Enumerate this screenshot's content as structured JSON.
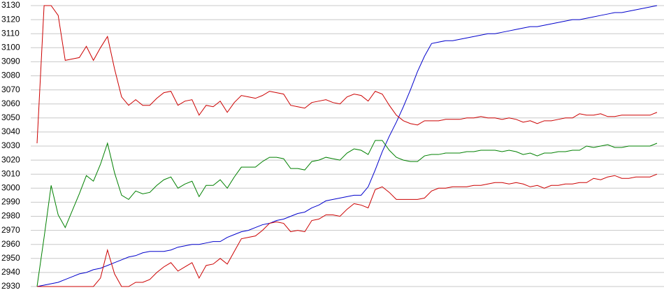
{
  "chart_data": {
    "type": "line",
    "ylim": [
      2930,
      3130
    ],
    "yticks": [
      2930,
      2940,
      2950,
      2960,
      2970,
      2980,
      2990,
      3000,
      3010,
      3020,
      3030,
      3040,
      3050,
      3060,
      3070,
      3080,
      3090,
      3100,
      3110,
      3120,
      3130
    ],
    "grid": true,
    "series": [
      {
        "color": "#0000cc",
        "values": [
          2930,
          2931,
          2932,
          2933,
          2935,
          2937,
          2939,
          2940,
          2942,
          2943,
          2945,
          2947,
          2949,
          2951,
          2952,
          2954,
          2955,
          2955,
          2955,
          2956,
          2958,
          2959,
          2960,
          2960,
          2961,
          2962,
          2962,
          2965,
          2967,
          2969,
          2970,
          2972,
          2974,
          2975,
          2977,
          2978,
          2980,
          2982,
          2983,
          2986,
          2988,
          2991,
          2992,
          2993,
          2994,
          2995,
          2995,
          3001,
          3013,
          3026,
          3037,
          3047,
          3058,
          3070,
          3083,
          3094,
          3103,
          3104,
          3105,
          3105,
          3106,
          3107,
          3108,
          3109,
          3110,
          3110,
          3111,
          3112,
          3113,
          3114,
          3115,
          3115,
          3116,
          3117,
          3118,
          3119,
          3120,
          3120,
          3121,
          3122,
          3123,
          3124,
          3125,
          3125,
          3126,
          3127,
          3128,
          3129,
          3130
        ]
      },
      {
        "color": "#cc0000",
        "values": [
          3032,
          3130,
          3130,
          3123,
          3091,
          3092,
          3093,
          3101,
          3091,
          3100,
          3108,
          3085,
          3065,
          3059,
          3063,
          3059,
          3059,
          3064,
          3068,
          3069,
          3059,
          3062,
          3063,
          3052,
          3059,
          3058,
          3062,
          3054,
          3061,
          3066,
          3065,
          3064,
          3066,
          3069,
          3068,
          3067,
          3059,
          3058,
          3057,
          3061,
          3062,
          3063,
          3061,
          3060,
          3065,
          3067,
          3066,
          3062,
          3069,
          3067,
          3059,
          3052,
          3048,
          3046,
          3045,
          3048,
          3048,
          3048,
          3049,
          3049,
          3049,
          3050,
          3050,
          3051,
          3050,
          3050,
          3049,
          3050,
          3049,
          3047,
          3048,
          3046,
          3048,
          3048,
          3049,
          3050,
          3050,
          3053,
          3052,
          3052,
          3053,
          3051,
          3051,
          3052,
          3052,
          3052,
          3052,
          3052,
          3054
        ]
      },
      {
        "color": "#008000",
        "values": [
          2930,
          2965,
          3002,
          2981,
          2972,
          2984,
          2996,
          3009,
          3005,
          3017,
          3032,
          3011,
          2995,
          2992,
          2998,
          2996,
          2997,
          3002,
          3006,
          3008,
          3000,
          3003,
          3005,
          2994,
          3002,
          3002,
          3006,
          3000,
          3008,
          3015,
          3015,
          3015,
          3019,
          3022,
          3022,
          3021,
          3014,
          3014,
          3013,
          3019,
          3020,
          3022,
          3021,
          3020,
          3025,
          3028,
          3027,
          3024,
          3034,
          3034,
          3027,
          3022,
          3020,
          3019,
          3019,
          3023,
          3024,
          3024,
          3025,
          3025,
          3025,
          3026,
          3026,
          3027,
          3027,
          3027,
          3026,
          3027,
          3026,
          3024,
          3025,
          3023,
          3025,
          3025,
          3026,
          3026,
          3027,
          3027,
          3030,
          3029,
          3030,
          3031,
          3029,
          3029,
          3030,
          3030,
          3030,
          3030,
          3032
        ]
      },
      {
        "color": "#cc0000",
        "values": [
          2930,
          2930,
          2930,
          2930,
          2930,
          2930,
          2930,
          2930,
          2930,
          2936,
          2956,
          2939,
          2930,
          2930,
          2933,
          2933,
          2935,
          2940,
          2944,
          2947,
          2941,
          2944,
          2947,
          2936,
          2945,
          2946,
          2950,
          2946,
          2955,
          2964,
          2965,
          2966,
          2970,
          2975,
          2976,
          2975,
          2969,
          2970,
          2969,
          2977,
          2978,
          2981,
          2981,
          2980,
          2985,
          2989,
          2988,
          2986,
          2999,
          3001,
          2997,
          2992,
          2992,
          2992,
          2992,
          2993,
          2998,
          3000,
          3000,
          3001,
          3001,
          3001,
          3002,
          3002,
          3003,
          3004,
          3004,
          3003,
          3004,
          3003,
          3001,
          3002,
          3000,
          3002,
          3002,
          3003,
          3003,
          3004,
          3004,
          3007,
          3006,
          3008,
          3009,
          3007,
          3007,
          3008,
          3008,
          3008,
          3010
        ]
      }
    ]
  }
}
